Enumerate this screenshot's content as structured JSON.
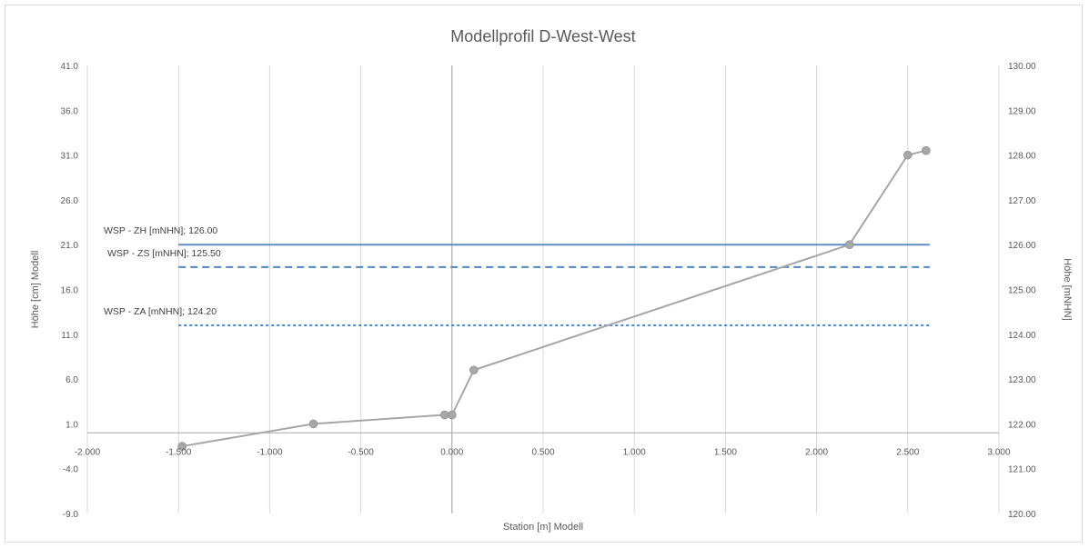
{
  "chart_data": {
    "type": "line",
    "title": "Modellprofil D-West-West",
    "xlabel": "Station [m] Modell",
    "ylabel": "Höhe [cm] Modell",
    "y2label": "Höhe  [mNHN]",
    "xlim": [
      -2.0,
      3.0
    ],
    "ylim": [
      -9.0,
      41.0
    ],
    "y2lim": [
      120.0,
      130.0
    ],
    "x_ticks": [
      "-2.000",
      "-1.500",
      "-1.000",
      "-0.500",
      "0.000",
      "0.500",
      "1.000",
      "1.500",
      "2.000",
      "2.500",
      "3.000"
    ],
    "y_ticks": [
      "-9.0",
      "-4.0",
      "1.0",
      "6.0",
      "11.0",
      "16.0",
      "21.0",
      "26.0",
      "31.0",
      "36.0",
      "41.0"
    ],
    "y2_ticks": [
      "120.00",
      "121.00",
      "122.00",
      "123.00",
      "124.00",
      "125.00",
      "126.00",
      "127.00",
      "128.00",
      "129.00",
      "130.00"
    ],
    "grid": "vertical",
    "profile": {
      "x": [
        -1.48,
        -0.76,
        -0.04,
        0.0,
        0.12,
        2.18,
        2.5,
        2.6
      ],
      "y": [
        -1.5,
        1.0,
        2.0,
        2.0,
        7.0,
        21.0,
        31.0,
        31.5
      ],
      "color": "#a6a6a6"
    },
    "water_levels": [
      {
        "label": "WSP - ZH [mNHN]; 126.00",
        "value": 126.0,
        "x_start": -1.5,
        "x_end": 2.62,
        "style": "solid",
        "color": "#5b8ec6"
      },
      {
        "label": "WSP - ZS [mNHN]; 125.50",
        "value": 125.5,
        "x_start": -1.5,
        "x_end": 2.62,
        "style": "dashed",
        "color": "#4f86c6"
      },
      {
        "label": "WSP - ZA [mNHN]; 124.20",
        "value": 124.2,
        "x_start": -1.5,
        "x_end": 2.62,
        "style": "dotted",
        "color": "#4f86c6"
      }
    ]
  }
}
